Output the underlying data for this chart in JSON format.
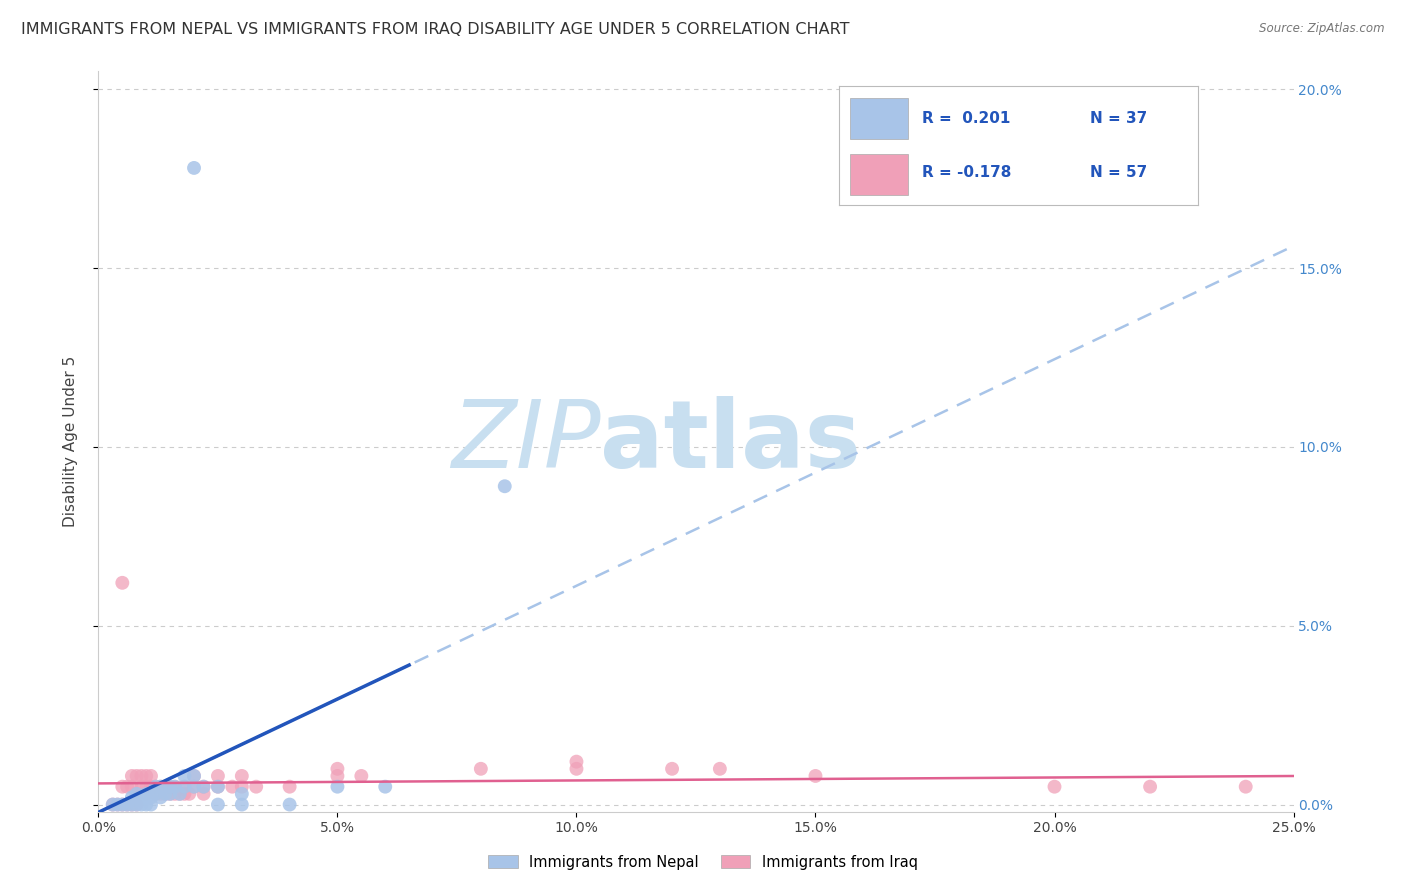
{
  "title": "IMMIGRANTS FROM NEPAL VS IMMIGRANTS FROM IRAQ DISABILITY AGE UNDER 5 CORRELATION CHART",
  "source": "Source: ZipAtlas.com",
  "ylabel": "Disability Age Under 5",
  "xlim": [
    0.0,
    0.25
  ],
  "ylim": [
    -0.002,
    0.205
  ],
  "xticks": [
    0.0,
    0.05,
    0.1,
    0.15,
    0.2,
    0.25
  ],
  "yticks": [
    0.0,
    0.05,
    0.1,
    0.15,
    0.2
  ],
  "nepal_color": "#a8c4e8",
  "iraq_color": "#f0a0b8",
  "nepal_line_color": "#2255bb",
  "iraq_line_color": "#e06090",
  "nepal_dash_color": "#a8c4e8",
  "legend_R1": "R =  0.201",
  "legend_N1": "N = 37",
  "legend_R2": "R = -0.178",
  "legend_N2": "N = 57",
  "legend_text_color": "#2255bb",
  "legend_label1": "Immigrants from Nepal",
  "legend_label2": "Immigrants from Iraq",
  "nepal_scatter": [
    [
      0.003,
      0.0
    ],
    [
      0.004,
      0.0
    ],
    [
      0.005,
      0.0
    ],
    [
      0.006,
      0.0
    ],
    [
      0.007,
      0.0
    ],
    [
      0.007,
      0.002
    ],
    [
      0.008,
      0.0
    ],
    [
      0.008,
      0.003
    ],
    [
      0.009,
      0.0
    ],
    [
      0.009,
      0.002
    ],
    [
      0.01,
      0.0
    ],
    [
      0.01,
      0.003
    ],
    [
      0.011,
      0.0
    ],
    [
      0.011,
      0.002
    ],
    [
      0.012,
      0.003
    ],
    [
      0.012,
      0.005
    ],
    [
      0.013,
      0.002
    ],
    [
      0.013,
      0.005
    ],
    [
      0.014,
      0.003
    ],
    [
      0.015,
      0.003
    ],
    [
      0.015,
      0.005
    ],
    [
      0.016,
      0.005
    ],
    [
      0.017,
      0.003
    ],
    [
      0.018,
      0.005
    ],
    [
      0.018,
      0.008
    ],
    [
      0.02,
      0.005
    ],
    [
      0.02,
      0.008
    ],
    [
      0.022,
      0.005
    ],
    [
      0.025,
      0.0
    ],
    [
      0.025,
      0.005
    ],
    [
      0.03,
      0.0
    ],
    [
      0.03,
      0.003
    ],
    [
      0.04,
      0.0
    ],
    [
      0.05,
      0.005
    ],
    [
      0.06,
      0.005
    ],
    [
      0.02,
      0.178
    ],
    [
      0.085,
      0.089
    ]
  ],
  "iraq_scatter": [
    [
      0.003,
      0.0
    ],
    [
      0.004,
      0.0
    ],
    [
      0.005,
      0.0
    ],
    [
      0.005,
      0.005
    ],
    [
      0.005,
      0.062
    ],
    [
      0.006,
      0.0
    ],
    [
      0.006,
      0.005
    ],
    [
      0.007,
      0.0
    ],
    [
      0.007,
      0.005
    ],
    [
      0.007,
      0.008
    ],
    [
      0.008,
      0.0
    ],
    [
      0.008,
      0.003
    ],
    [
      0.008,
      0.008
    ],
    [
      0.009,
      0.005
    ],
    [
      0.009,
      0.008
    ],
    [
      0.01,
      0.003
    ],
    [
      0.01,
      0.005
    ],
    [
      0.01,
      0.008
    ],
    [
      0.011,
      0.005
    ],
    [
      0.011,
      0.008
    ],
    [
      0.012,
      0.003
    ],
    [
      0.012,
      0.005
    ],
    [
      0.013,
      0.003
    ],
    [
      0.013,
      0.005
    ],
    [
      0.014,
      0.003
    ],
    [
      0.014,
      0.005
    ],
    [
      0.015,
      0.003
    ],
    [
      0.015,
      0.005
    ],
    [
      0.016,
      0.003
    ],
    [
      0.016,
      0.005
    ],
    [
      0.017,
      0.003
    ],
    [
      0.018,
      0.003
    ],
    [
      0.018,
      0.005
    ],
    [
      0.019,
      0.003
    ],
    [
      0.02,
      0.005
    ],
    [
      0.02,
      0.008
    ],
    [
      0.022,
      0.003
    ],
    [
      0.022,
      0.005
    ],
    [
      0.025,
      0.005
    ],
    [
      0.025,
      0.008
    ],
    [
      0.028,
      0.005
    ],
    [
      0.03,
      0.005
    ],
    [
      0.03,
      0.008
    ],
    [
      0.033,
      0.005
    ],
    [
      0.04,
      0.005
    ],
    [
      0.05,
      0.008
    ],
    [
      0.05,
      0.01
    ],
    [
      0.055,
      0.008
    ],
    [
      0.08,
      0.01
    ],
    [
      0.1,
      0.01
    ],
    [
      0.1,
      0.012
    ],
    [
      0.12,
      0.01
    ],
    [
      0.13,
      0.01
    ],
    [
      0.15,
      0.008
    ],
    [
      0.2,
      0.005
    ],
    [
      0.22,
      0.005
    ],
    [
      0.24,
      0.005
    ]
  ],
  "background_color": "#ffffff",
  "grid_color": "#cccccc",
  "title_fontsize": 11.5,
  "axis_label_fontsize": 11,
  "tick_fontsize": 10,
  "watermark_zip": "ZIP",
  "watermark_atlas": "atlas",
  "watermark_color_zip": "#c8dff0",
  "watermark_color_atlas": "#c8dff0"
}
